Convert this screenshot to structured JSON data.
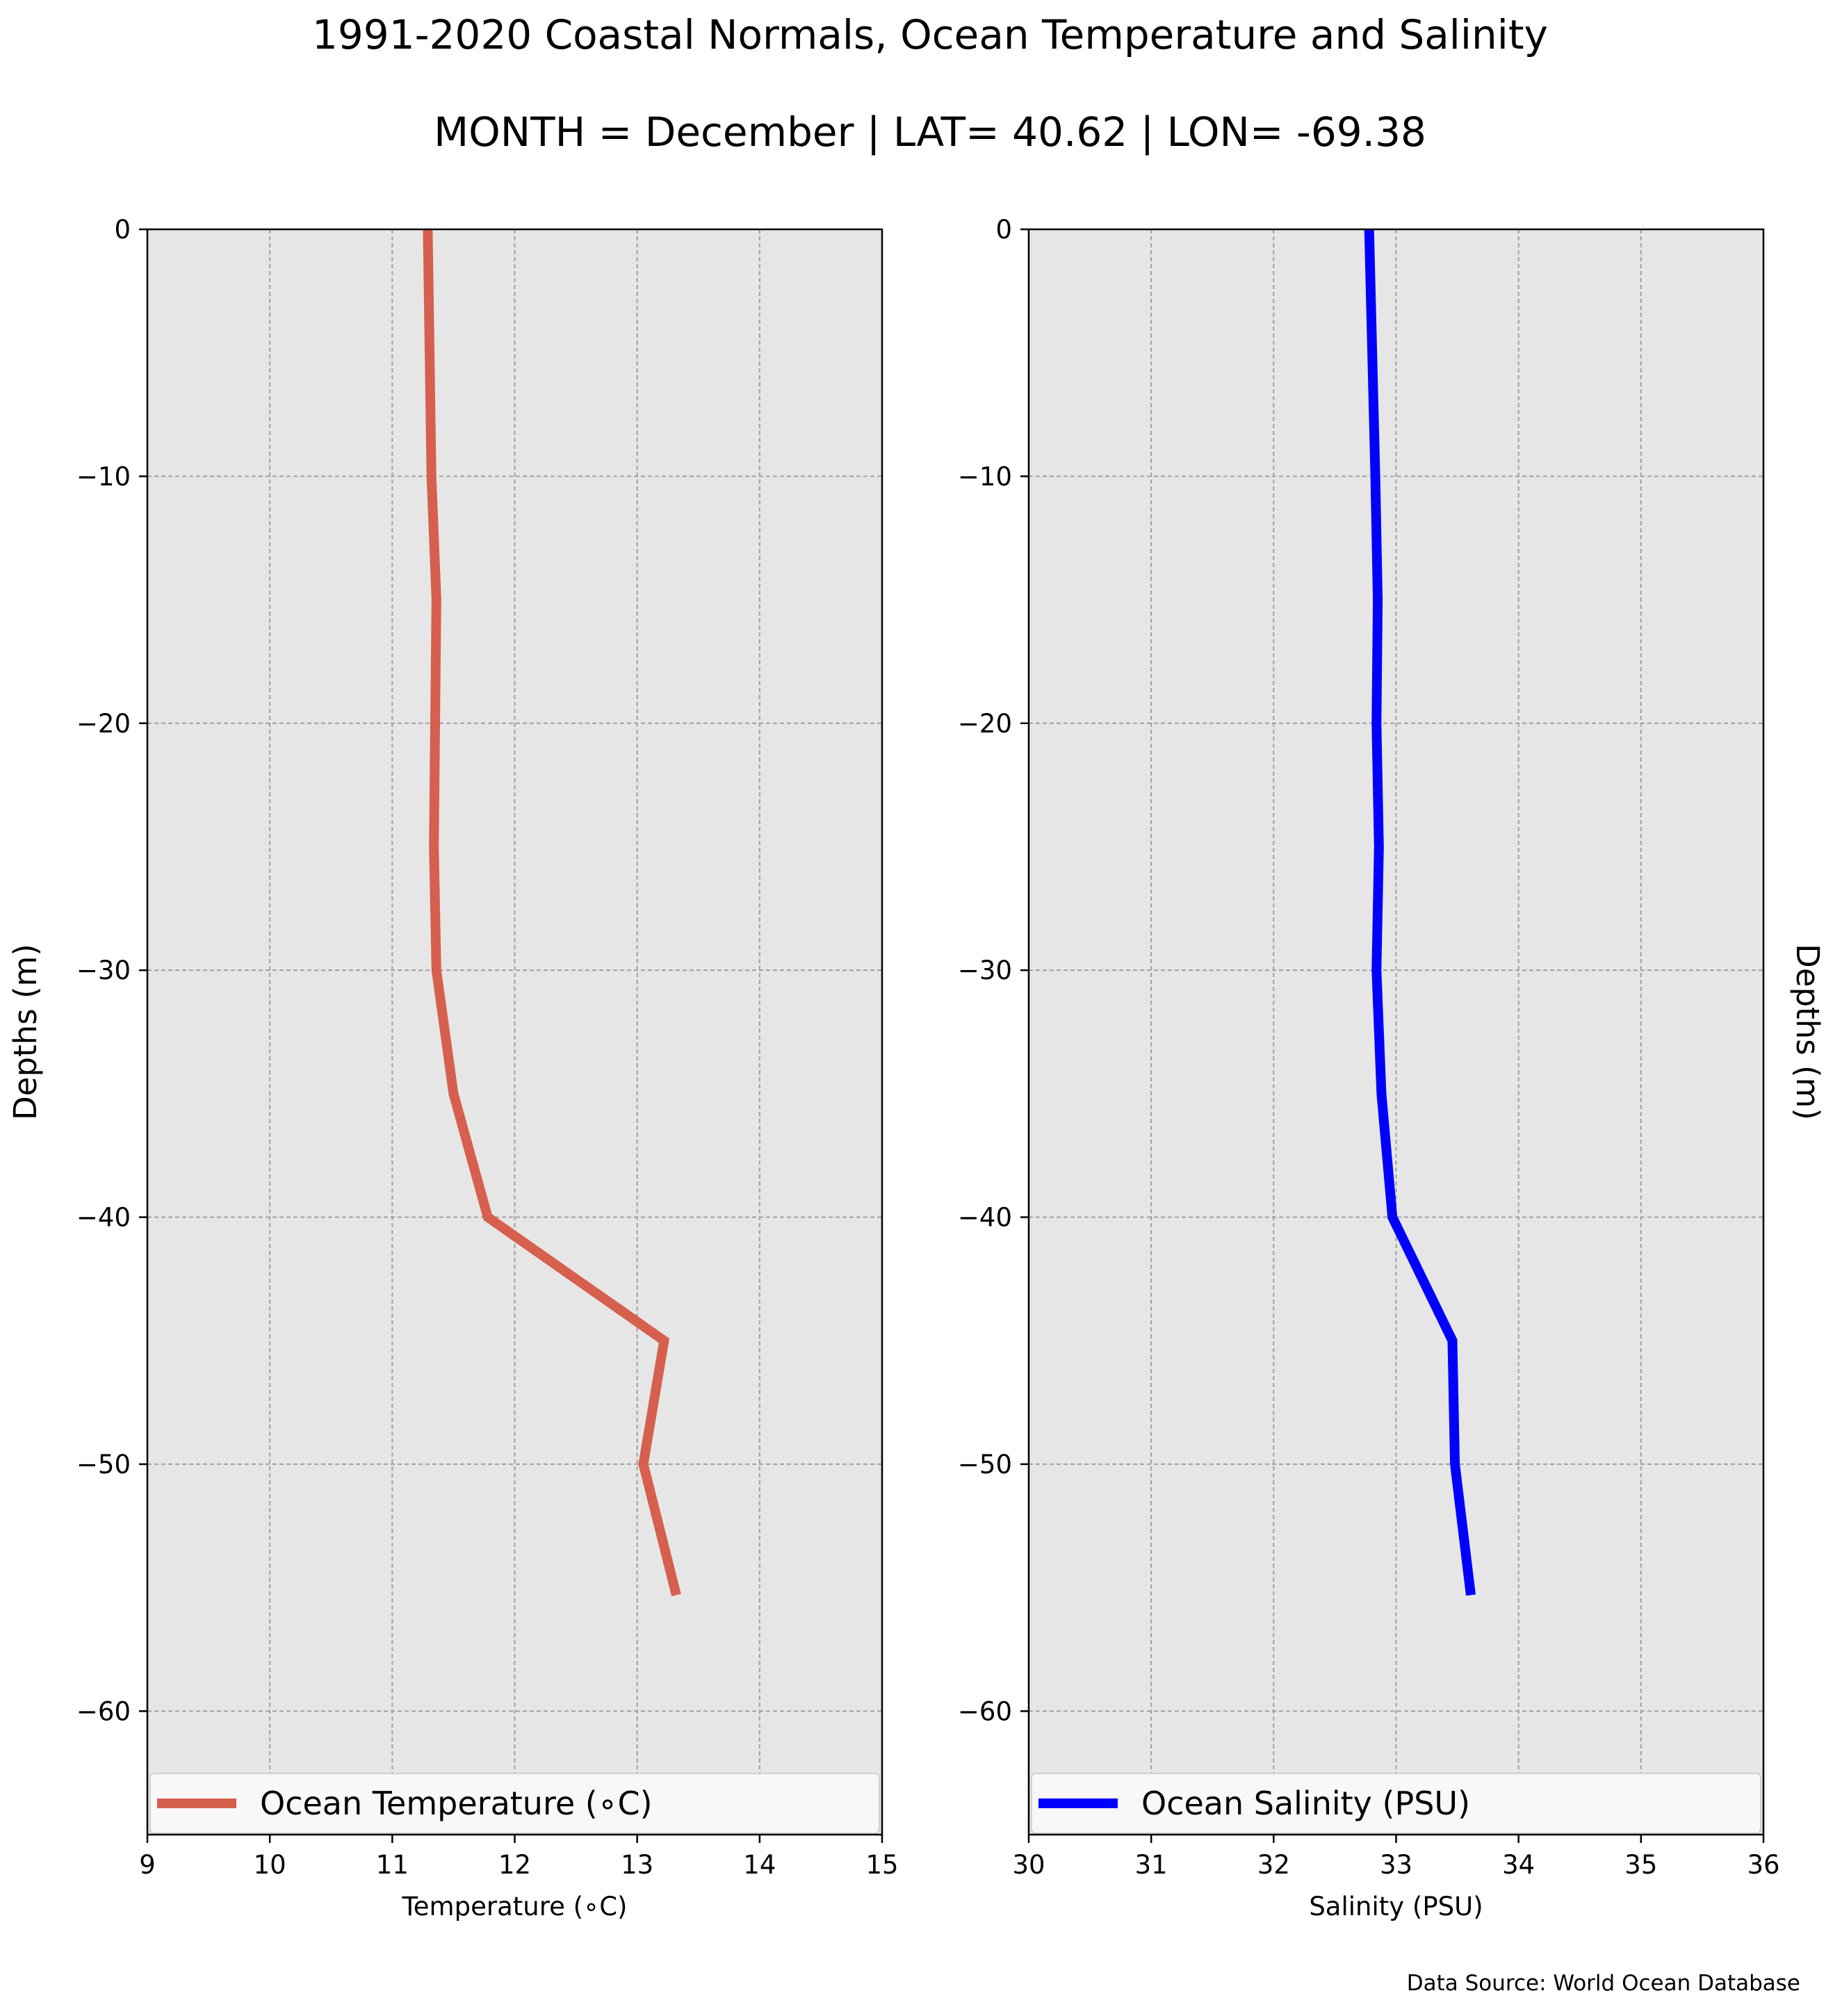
{
  "figure": {
    "title": "1991-2020 Coastal Normals, Ocean Temperature and Salinity",
    "subtitle": "MONTH = December | LAT= 40.62 | LON= -69.38",
    "footnote": "Data Source: World Ocean Database"
  },
  "chart_data": [
    {
      "type": "line",
      "xlabel": "Temperature (∘C)",
      "ylabel": "Depths (m)",
      "xlim": [
        9,
        15
      ],
      "ylim": [
        -65,
        0
      ],
      "xticks": [
        9,
        10,
        11,
        12,
        13,
        14,
        15
      ],
      "yticks": [
        0,
        -10,
        -20,
        -30,
        -40,
        -50,
        -60
      ],
      "xtick_labels": [
        "9",
        "10",
        "11",
        "12",
        "13",
        "14",
        "15"
      ],
      "ytick_labels": [
        "0",
        "−10",
        "−20",
        "−30",
        "−40",
        "−50",
        "−60"
      ],
      "grid": true,
      "legend_position": "lower center",
      "series": [
        {
          "name": "Ocean Temperature (∘C)",
          "color": "#d65f4e",
          "x": [
            11.29,
            11.32,
            11.36,
            11.34,
            11.36,
            11.5,
            11.78,
            13.22,
            13.05,
            13.32
          ],
          "y": [
            0,
            -10,
            -15,
            -25,
            -30,
            -35,
            -40,
            -45,
            -50,
            -55.3
          ]
        }
      ]
    },
    {
      "type": "line",
      "xlabel": "Salinity (PSU)",
      "ylabel": "Depths (m)",
      "xlim": [
        30,
        36
      ],
      "ylim": [
        -65,
        0
      ],
      "xticks": [
        30,
        31,
        32,
        33,
        34,
        35,
        36
      ],
      "yticks": [
        0,
        -10,
        -20,
        -30,
        -40,
        -50,
        -60
      ],
      "xtick_labels": [
        "30",
        "31",
        "32",
        "33",
        "34",
        "35",
        "36"
      ],
      "ytick_labels": [
        "0",
        "−10",
        "−20",
        "−30",
        "−40",
        "−50",
        "−60"
      ],
      "grid": true,
      "legend_position": "lower center",
      "series": [
        {
          "name": "Ocean Salinity (PSU)",
          "color": "#0000ff",
          "x": [
            32.78,
            32.83,
            32.85,
            32.84,
            32.86,
            32.84,
            32.88,
            32.97,
            33.46,
            33.48,
            33.61
          ],
          "y": [
            0,
            -10,
            -15,
            -20,
            -25,
            -30,
            -35,
            -40,
            -45,
            -50,
            -55.3
          ]
        }
      ]
    }
  ]
}
